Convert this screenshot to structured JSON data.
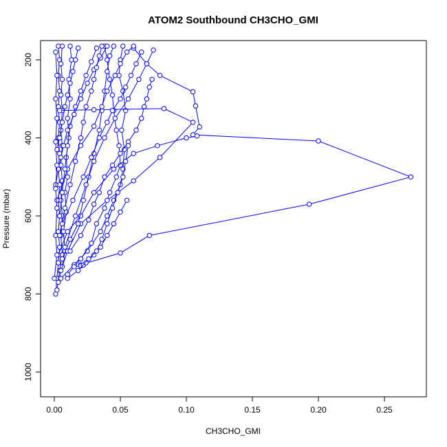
{
  "chart_data": {
    "type": "line",
    "title": "ATOM2 Southbound CH3CHO_GMI",
    "xlabel": "CH3CHO_GMI",
    "ylabel": "Pressure (mbar)",
    "xlim": [
      0,
      0.28
    ],
    "ylim": [
      1060,
      155
    ],
    "y_reversed": true,
    "x_ticks": [
      0.0,
      0.05,
      0.1,
      0.15,
      0.2,
      0.25
    ],
    "x_tick_labels": [
      "0.00",
      "0.05",
      "0.10",
      "0.15",
      "0.20",
      "0.25"
    ],
    "y_ticks": [
      200,
      400,
      600,
      800,
      1000
    ],
    "y_tick_labels": [
      "200",
      "400",
      "600",
      "800",
      "1000"
    ],
    "grid": false,
    "marker": "open-circle",
    "color": "#0000ff",
    "series": [
      {
        "points": [
          [
            0.001,
            800
          ],
          [
            0.002,
            760
          ],
          [
            0.003,
            720
          ],
          [
            0.004,
            680
          ],
          [
            0.003,
            640
          ],
          [
            0.004,
            600
          ],
          [
            0.003,
            560
          ],
          [
            0.004,
            520
          ],
          [
            0.003,
            480
          ],
          [
            0.004,
            440
          ],
          [
            0.003,
            400
          ],
          [
            0.004,
            360
          ],
          [
            0.003,
            320
          ],
          [
            0.004,
            280
          ],
          [
            0.003,
            240
          ],
          [
            0.004,
            200
          ],
          [
            0.003,
            165
          ]
        ]
      },
      {
        "points": [
          [
            0.002,
            790
          ],
          [
            0.004,
            740
          ],
          [
            0.006,
            700
          ],
          [
            0.005,
            650
          ],
          [
            0.006,
            600
          ],
          [
            0.005,
            560
          ],
          [
            0.006,
            510
          ],
          [
            0.005,
            470
          ],
          [
            0.006,
            420
          ],
          [
            0.005,
            380
          ],
          [
            0.006,
            330
          ],
          [
            0.005,
            290
          ],
          [
            0.006,
            250
          ],
          [
            0.005,
            210
          ],
          [
            0.006,
            165
          ]
        ]
      },
      {
        "points": [
          [
            0.003,
            770
          ],
          [
            0.006,
            730
          ],
          [
            0.008,
            690
          ],
          [
            0.007,
            640
          ],
          [
            0.009,
            590
          ],
          [
            0.008,
            540
          ],
          [
            0.01,
            500
          ],
          [
            0.009,
            450
          ],
          [
            0.011,
            400
          ],
          [
            0.01,
            350
          ],
          [
            0.012,
            300
          ],
          [
            0.011,
            250
          ],
          [
            0.013,
            200
          ],
          [
            0.012,
            165
          ]
        ]
      },
      {
        "points": [
          [
            0.005,
            760
          ],
          [
            0.015,
            725
          ],
          [
            0.025,
            690
          ],
          [
            0.035,
            640
          ],
          [
            0.04,
            600
          ],
          [
            0.045,
            560
          ],
          [
            0.05,
            520
          ],
          [
            0.052,
            480
          ],
          [
            0.053,
            430
          ],
          [
            0.051,
            380
          ],
          [
            0.054,
            330
          ],
          [
            0.052,
            280
          ],
          [
            0.049,
            240
          ],
          [
            0.05,
            200
          ],
          [
            0.052,
            165
          ]
        ]
      },
      {
        "points": [
          [
            0.01,
            750
          ],
          [
            0.02,
            710
          ],
          [
            0.028,
            670
          ],
          [
            0.032,
            620
          ],
          [
            0.038,
            580
          ],
          [
            0.042,
            540
          ],
          [
            0.047,
            500
          ],
          [
            0.05,
            470
          ],
          [
            0.049,
            420
          ],
          [
            0.047,
            380
          ],
          [
            0.045,
            330
          ],
          [
            0.044,
            290
          ],
          [
            0.042,
            250
          ],
          [
            0.04,
            200
          ],
          [
            0.038,
            165
          ]
        ]
      },
      {
        "points": [
          [
            0.02,
            725
          ],
          [
            0.05,
            695
          ],
          [
            0.072,
            650
          ],
          [
            0.193,
            570
          ],
          [
            0.27,
            500
          ],
          [
            0.2,
            408
          ],
          [
            0.105,
            392
          ],
          [
            0.11,
            372
          ],
          [
            0.107,
            318
          ],
          [
            0.105,
            282
          ],
          [
            0.08,
            240
          ],
          [
            0.07,
            210
          ],
          [
            0.06,
            170
          ]
        ]
      },
      {
        "points": [
          [
            0.004,
            330
          ],
          [
            0.03,
            328
          ],
          [
            0.083,
            325
          ],
          [
            0.105,
            360
          ],
          [
            0.08,
            450
          ],
          [
            0.06,
            510
          ],
          [
            0.04,
            560
          ],
          [
            0.02,
            620
          ],
          [
            0.01,
            690
          ],
          [
            0.005,
            740
          ]
        ]
      },
      {
        "points": [
          [
            0.003,
            700
          ],
          [
            0.01,
            640
          ],
          [
            0.02,
            600
          ],
          [
            0.03,
            540
          ],
          [
            0.045,
            480
          ],
          [
            0.06,
            440
          ],
          [
            0.078,
            420
          ],
          [
            0.1,
            400
          ],
          [
            0.108,
            395
          ]
        ]
      },
      {
        "points": [
          [
            0.006,
            710
          ],
          [
            0.012,
            660
          ],
          [
            0.018,
            620
          ],
          [
            0.022,
            560
          ],
          [
            0.026,
            500
          ],
          [
            0.03,
            440
          ],
          [
            0.034,
            380
          ],
          [
            0.036,
            330
          ],
          [
            0.038,
            280
          ],
          [
            0.04,
            230
          ],
          [
            0.042,
            190
          ],
          [
            0.045,
            165
          ]
        ]
      },
      {
        "points": [
          [
            0.008,
            680
          ],
          [
            0.016,
            600
          ],
          [
            0.024,
            520
          ],
          [
            0.03,
            460
          ],
          [
            0.038,
            400
          ],
          [
            0.046,
            350
          ],
          [
            0.056,
            300
          ],
          [
            0.064,
            250
          ],
          [
            0.07,
            210
          ],
          [
            0.075,
            175
          ]
        ]
      },
      {
        "points": [
          [
            0.002,
            560
          ],
          [
            0.01,
            480
          ],
          [
            0.02,
            420
          ],
          [
            0.03,
            370
          ],
          [
            0.036,
            320
          ],
          [
            0.04,
            280
          ],
          [
            0.046,
            240
          ],
          [
            0.05,
            210
          ],
          [
            0.055,
            180
          ],
          [
            0.06,
            165
          ]
        ]
      },
      {
        "points": [
          [
            0.004,
            600
          ],
          [
            0.006,
            540
          ],
          [
            0.008,
            480
          ],
          [
            0.01,
            420
          ],
          [
            0.012,
            370
          ],
          [
            0.016,
            320
          ],
          [
            0.02,
            280
          ],
          [
            0.024,
            240
          ],
          [
            0.028,
            205
          ],
          [
            0.032,
            170
          ]
        ]
      },
      {
        "points": [
          [
            0.001,
            520
          ],
          [
            0.003,
            480
          ],
          [
            0.005,
            450
          ],
          [
            0.007,
            420
          ],
          [
            0.01,
            380
          ],
          [
            0.015,
            340
          ],
          [
            0.02,
            300
          ],
          [
            0.025,
            260
          ],
          [
            0.03,
            225
          ],
          [
            0.035,
            195
          ],
          [
            0.04,
            165
          ]
        ]
      },
      {
        "points": [
          [
            0.012,
            690
          ],
          [
            0.02,
            650
          ],
          [
            0.026,
            610
          ],
          [
            0.03,
            570
          ],
          [
            0.034,
            540
          ],
          [
            0.038,
            500
          ],
          [
            0.044,
            470
          ],
          [
            0.05,
            440
          ],
          [
            0.056,
            410
          ],
          [
            0.062,
            380
          ],
          [
            0.066,
            350
          ],
          [
            0.068,
            320
          ],
          [
            0.07,
            300
          ],
          [
            0.072,
            270
          ],
          [
            0.074,
            250
          ]
        ]
      },
      {
        "points": [
          [
            0.015,
            730
          ],
          [
            0.02,
            728
          ],
          [
            0.022,
            726
          ],
          [
            0.024,
            720
          ],
          [
            0.03,
            700
          ],
          [
            0.035,
            680
          ],
          [
            0.04,
            650
          ],
          [
            0.045,
            620
          ],
          [
            0.05,
            590
          ],
          [
            0.055,
            560
          ]
        ]
      },
      {
        "points": [
          [
            0.0,
            760
          ],
          [
            0.002,
            700
          ],
          [
            0.001,
            650
          ],
          [
            0.002,
            580
          ],
          [
            0.001,
            530
          ],
          [
            0.002,
            470
          ],
          [
            0.001,
            410
          ],
          [
            0.002,
            350
          ],
          [
            0.001,
            300
          ],
          [
            0.002,
            240
          ],
          [
            0.001,
            180
          ]
        ]
      },
      {
        "points": [
          [
            0.004,
            650
          ],
          [
            0.008,
            580
          ],
          [
            0.012,
            520
          ],
          [
            0.016,
            460
          ],
          [
            0.02,
            400
          ],
          [
            0.022,
            360
          ],
          [
            0.024,
            320
          ],
          [
            0.028,
            280
          ],
          [
            0.03,
            250
          ],
          [
            0.032,
            220
          ],
          [
            0.034,
            190
          ],
          [
            0.036,
            165
          ]
        ]
      },
      {
        "points": [
          [
            0.006,
            620
          ],
          [
            0.014,
            560
          ],
          [
            0.022,
            500
          ],
          [
            0.028,
            450
          ],
          [
            0.034,
            400
          ],
          [
            0.04,
            360
          ],
          [
            0.044,
            330
          ],
          [
            0.05,
            300
          ],
          [
            0.054,
            270
          ],
          [
            0.058,
            240
          ],
          [
            0.062,
            210
          ],
          [
            0.066,
            180
          ]
        ]
      },
      {
        "points": [
          [
            0.002,
            430
          ],
          [
            0.004,
            400
          ],
          [
            0.006,
            360
          ],
          [
            0.008,
            320
          ],
          [
            0.01,
            290
          ],
          [
            0.012,
            260
          ],
          [
            0.014,
            230
          ],
          [
            0.016,
            200
          ],
          [
            0.018,
            170
          ]
        ]
      },
      {
        "points": [
          [
            0.01,
            760
          ],
          [
            0.018,
            740
          ],
          [
            0.026,
            710
          ],
          [
            0.032,
            690
          ],
          [
            0.036,
            660
          ],
          [
            0.04,
            620
          ],
          [
            0.044,
            580
          ],
          [
            0.048,
            540
          ],
          [
            0.052,
            500
          ],
          [
            0.054,
            460
          ],
          [
            0.056,
            420
          ]
        ]
      }
    ]
  }
}
